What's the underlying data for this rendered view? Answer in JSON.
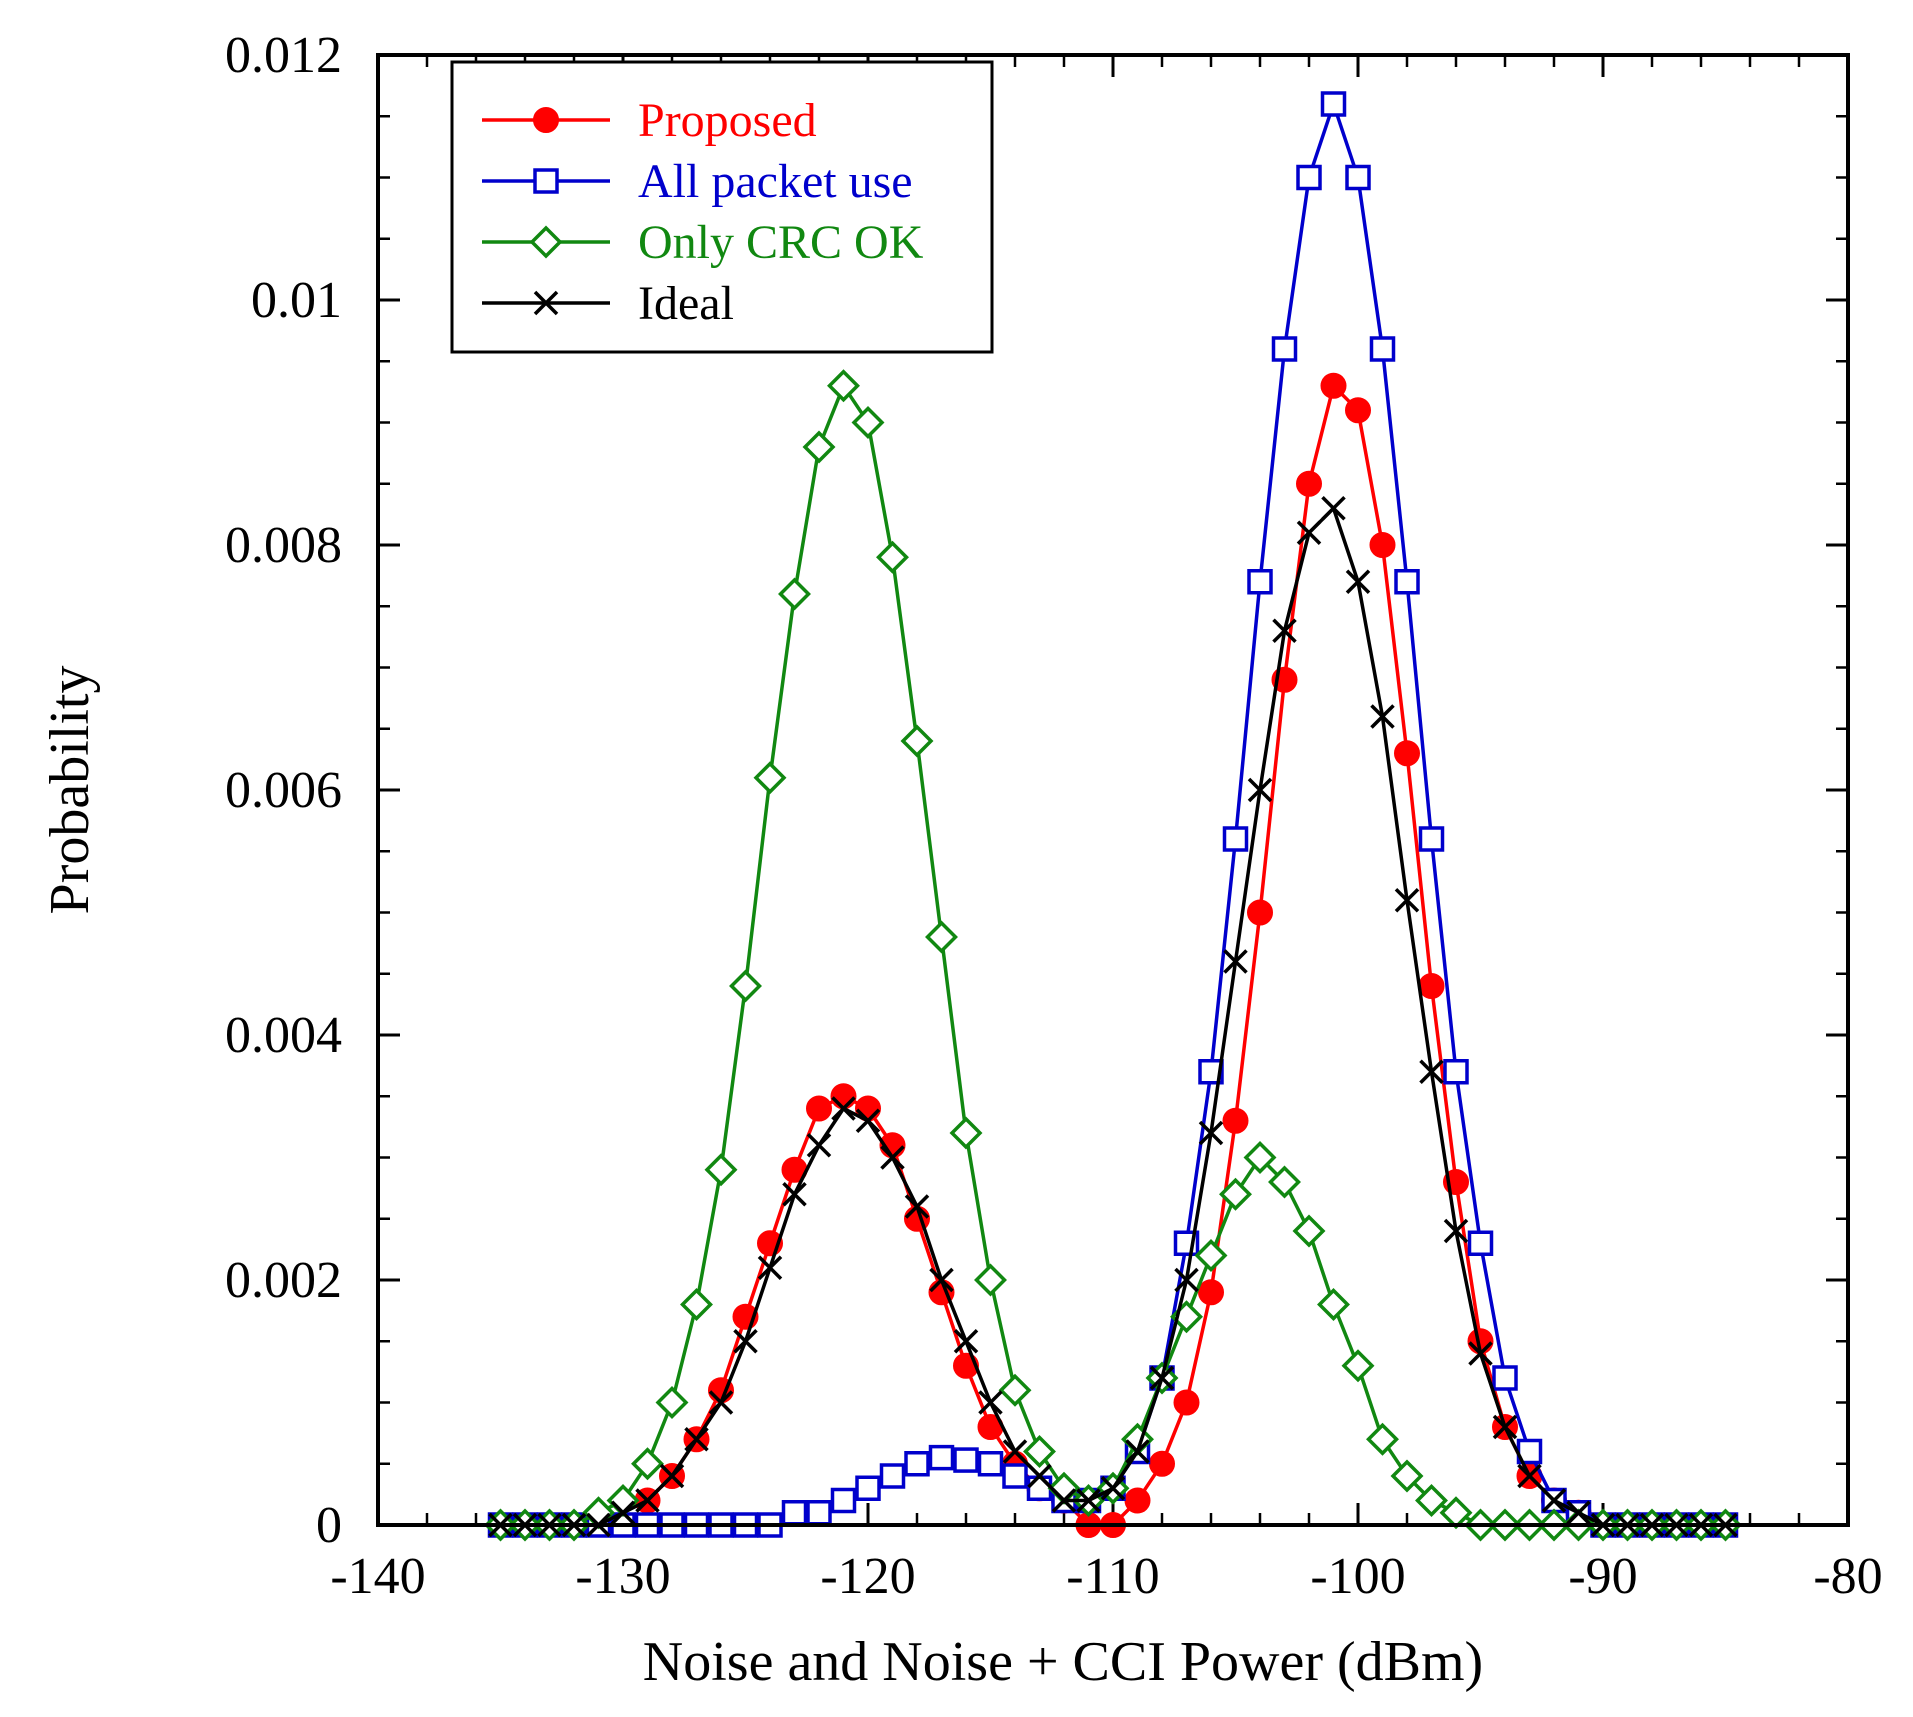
{
  "chart_data": {
    "type": "line",
    "xlabel": "Noise and Noise + CCI Power (dBm)",
    "ylabel": "Probability",
    "xlim": [
      -140,
      -80
    ],
    "ylim": [
      0,
      0.012
    ],
    "xticks": [
      -140,
      -130,
      -120,
      -110,
      -100,
      -90,
      -80
    ],
    "xtick_labels": [
      "-140",
      "-130",
      "-120",
      "-110",
      "-100",
      "-90",
      "-80"
    ],
    "yticks": [
      0,
      0.002,
      0.004,
      0.006,
      0.008,
      0.01,
      0.012
    ],
    "ytick_labels": [
      "0",
      "0.002",
      "0.004",
      "0.006",
      "0.008",
      "0.01",
      "0.012"
    ],
    "legend_position": "top-left",
    "series": [
      {
        "name": "Proposed",
        "color": "#ff0000",
        "marker": "filled-circle",
        "x": [
          -129,
          -128,
          -127,
          -126,
          -125,
          -124,
          -123,
          -122,
          -121,
          -120,
          -119,
          -118,
          -117,
          -116,
          -115,
          -114,
          -113,
          -112,
          -111,
          -110,
          -109,
          -108,
          -107,
          -106,
          -105,
          -104,
          -103,
          -102,
          -101,
          -100,
          -99,
          -98,
          -97,
          -96,
          -95,
          -94,
          -93,
          -92,
          -91,
          -90,
          -89,
          -88,
          -87,
          -86,
          -85
        ],
        "y": [
          0.0002,
          0.0004,
          0.0007,
          0.0011,
          0.0017,
          0.0023,
          0.0029,
          0.0034,
          0.0035,
          0.0034,
          0.0031,
          0.0025,
          0.0019,
          0.0013,
          0.0008,
          0.0005,
          0.0003,
          0.0002,
          0.0,
          0.0,
          0.0002,
          0.0005,
          0.001,
          0.0019,
          0.0033,
          0.005,
          0.0069,
          0.0085,
          0.0093,
          0.0091,
          0.008,
          0.0063,
          0.0044,
          0.0028,
          0.0015,
          0.0008,
          0.0004,
          0.0002,
          0.0001,
          0.0,
          0.0,
          0.0,
          0.0,
          0.0,
          0.0
        ]
      },
      {
        "name": "All packet use",
        "color": "#0000cc",
        "marker": "open-square",
        "x": [
          -135,
          -134,
          -133,
          -132,
          -131,
          -130,
          -129,
          -128,
          -127,
          -126,
          -125,
          -124,
          -123,
          -122,
          -121,
          -120,
          -119,
          -118,
          -117,
          -116,
          -115,
          -114,
          -113,
          -112,
          -111,
          -110,
          -109,
          -108,
          -107,
          -106,
          -105,
          -104,
          -103,
          -102,
          -101,
          -100,
          -99,
          -98,
          -97,
          -96,
          -95,
          -94,
          -93,
          -92,
          -91,
          -90,
          -89,
          -88,
          -87,
          -86,
          -85
        ],
        "y": [
          0.0,
          0.0,
          0.0,
          0.0,
          0.0,
          0.0,
          0.0,
          0.0,
          0.0,
          0.0,
          0.0,
          0.0,
          0.0001,
          0.0001,
          0.0002,
          0.0003,
          0.0004,
          0.0005,
          0.00055,
          0.00053,
          0.0005,
          0.0004,
          0.0003,
          0.0002,
          0.0002,
          0.0003,
          0.0006,
          0.0012,
          0.0023,
          0.0037,
          0.0056,
          0.0077,
          0.0096,
          0.011,
          0.0116,
          0.011,
          0.0096,
          0.0077,
          0.0056,
          0.0037,
          0.0023,
          0.0012,
          0.0006,
          0.0002,
          0.0001,
          0.0,
          0.0,
          0.0,
          0.0,
          0.0,
          0.0
        ]
      },
      {
        "name": "Only CRC OK",
        "color": "#118811",
        "marker": "open-diamond",
        "x": [
          -135,
          -134,
          -133,
          -132,
          -131,
          -130,
          -129,
          -128,
          -127,
          -126,
          -125,
          -124,
          -123,
          -122,
          -121,
          -120,
          -119,
          -118,
          -117,
          -116,
          -115,
          -114,
          -113,
          -112,
          -111,
          -110,
          -109,
          -108,
          -107,
          -106,
          -105,
          -104,
          -103,
          -102,
          -101,
          -100,
          -99,
          -98,
          -97,
          -96,
          -95,
          -94,
          -93,
          -92,
          -91,
          -90,
          -89,
          -88,
          -87,
          -86,
          -85
        ],
        "y": [
          0.0,
          0.0,
          0.0,
          0.0,
          0.0001,
          0.0002,
          0.0005,
          0.001,
          0.0018,
          0.0029,
          0.0044,
          0.0061,
          0.0076,
          0.0088,
          0.0093,
          0.009,
          0.0079,
          0.0064,
          0.0048,
          0.0032,
          0.002,
          0.0011,
          0.0006,
          0.0003,
          0.0002,
          0.0003,
          0.0007,
          0.0012,
          0.0017,
          0.0022,
          0.0027,
          0.003,
          0.0028,
          0.0024,
          0.0018,
          0.0013,
          0.0007,
          0.0004,
          0.0002,
          0.0001,
          0.0,
          0.0,
          0.0,
          0.0,
          0.0,
          0.0,
          0.0,
          0.0,
          0.0,
          0.0,
          0.0
        ]
      },
      {
        "name": "Ideal",
        "color": "#000000",
        "marker": "cross",
        "x": [
          -135,
          -134,
          -133,
          -132,
          -131,
          -130,
          -129,
          -128,
          -127,
          -126,
          -125,
          -124,
          -123,
          -122,
          -121,
          -120,
          -119,
          -118,
          -117,
          -116,
          -115,
          -114,
          -113,
          -112,
          -111,
          -110,
          -109,
          -108,
          -107,
          -106,
          -105,
          -104,
          -103,
          -102,
          -101,
          -100,
          -99,
          -98,
          -97,
          -96,
          -95,
          -94,
          -93,
          -92,
          -91,
          -90,
          -89,
          -88,
          -87,
          -86,
          -85
        ],
        "y": [
          0.0,
          0.0,
          0.0,
          0.0,
          0.0,
          0.0001,
          0.0002,
          0.0004,
          0.0007,
          0.001,
          0.0015,
          0.0021,
          0.0027,
          0.0031,
          0.0034,
          0.0033,
          0.003,
          0.0026,
          0.002,
          0.0015,
          0.001,
          0.0006,
          0.0004,
          0.0002,
          0.0002,
          0.0003,
          0.0006,
          0.0012,
          0.002,
          0.0032,
          0.0046,
          0.006,
          0.0073,
          0.0081,
          0.0083,
          0.0077,
          0.0066,
          0.0051,
          0.0037,
          0.0024,
          0.0014,
          0.0008,
          0.0004,
          0.0002,
          0.0001,
          0.0,
          0.0,
          0.0,
          0.0,
          0.0,
          0.0
        ]
      }
    ]
  }
}
